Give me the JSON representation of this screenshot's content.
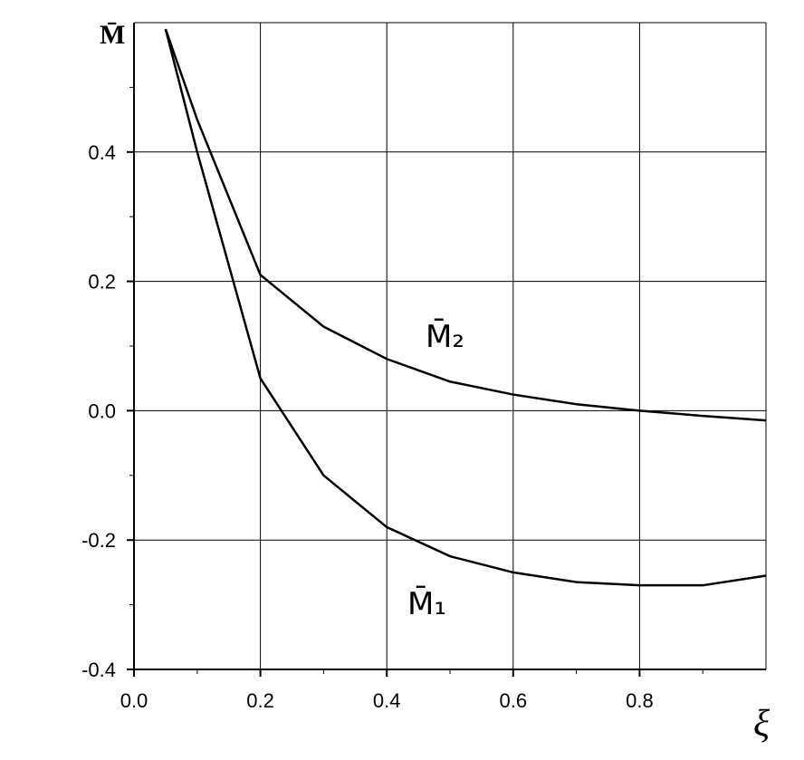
{
  "chart_data": {
    "type": "line",
    "x_label": "ξ",
    "y_label": "M̄",
    "xlim": [
      0,
      1
    ],
    "ylim": [
      -0.4,
      0.6
    ],
    "xticks": [
      {
        "value": 0,
        "label": "0.0"
      },
      0.2,
      0.4,
      0.6,
      0.8
    ],
    "yticks": [
      -0.4,
      -0.2,
      {
        "value": 0,
        "label": "0.0"
      },
      0.2,
      0.4
    ],
    "xgrid": [
      0.2,
      0.4,
      0.6,
      0.8,
      1.0
    ],
    "ygrid": [
      -0.2,
      0,
      0.2,
      0.4,
      0.6
    ],
    "xminorticks": [
      0.1,
      0.3,
      0.5,
      0.7,
      0.9
    ],
    "yminorticks": [
      -0.3,
      -0.1,
      0.1,
      0.3,
      0.5
    ],
    "x": [
      0.05,
      0.1,
      0.2,
      0.3,
      0.4,
      0.5,
      0.6,
      0.7,
      0.8,
      0.9,
      1.0
    ],
    "series": [
      {
        "name": "M̄₁",
        "color": "#000000",
        "values": [
          0.59,
          0.4,
          0.05,
          -0.1,
          -0.18,
          -0.225,
          -0.25,
          -0.265,
          -0.27,
          -0.27,
          -0.255
        ]
      },
      {
        "name": "M̄₂",
        "color": "#000000",
        "values": [
          0.59,
          0.45,
          0.21,
          0.13,
          0.08,
          0.045,
          0.025,
          0.01,
          0.0,
          -0.008,
          -0.015
        ]
      }
    ]
  }
}
